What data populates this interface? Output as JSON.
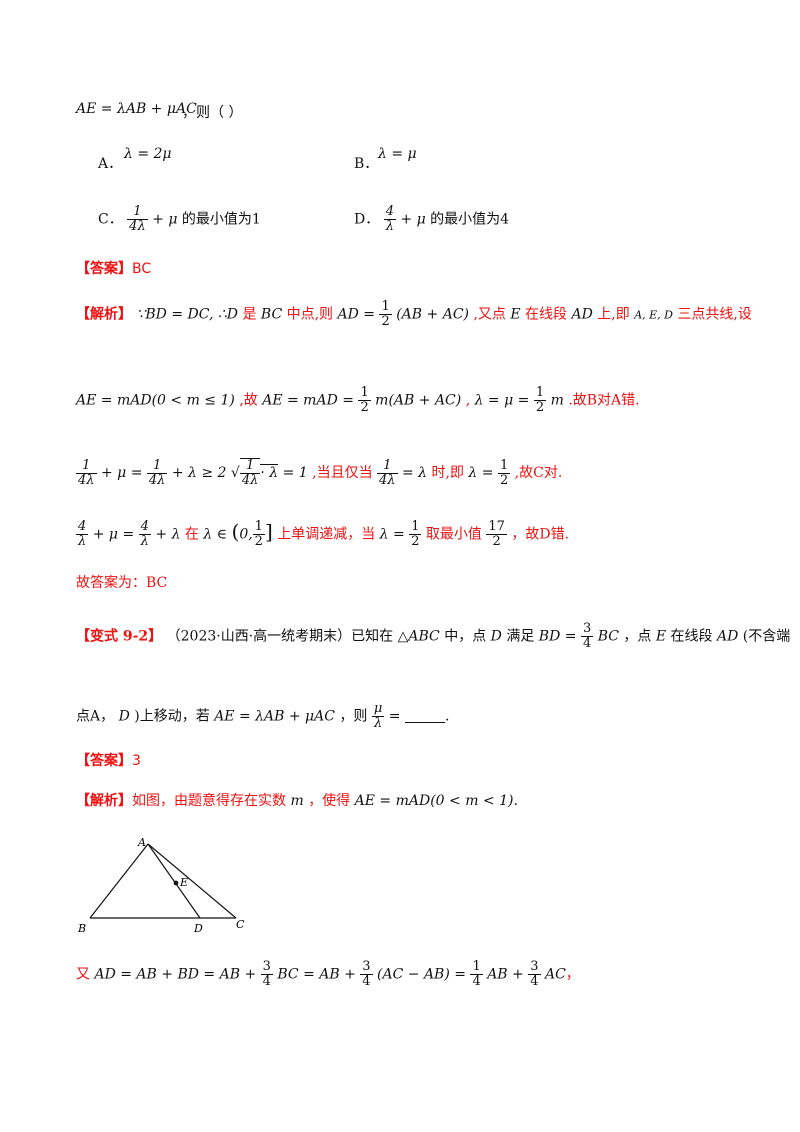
{
  "question": {
    "stem_formula": "AE = λAB + μAC",
    "stem_suffix": "，则（    ）",
    "options": [
      {
        "label": "A．",
        "text": "λ = 2μ"
      },
      {
        "label": "B．",
        "text": "λ = μ"
      },
      {
        "label": "C．",
        "frac_num": "1",
        "frac_den": "4λ",
        "tail": "+ μ",
        "text": "的最小值为1"
      },
      {
        "label": "D．",
        "frac_num": "4",
        "frac_den": "λ",
        "tail": "+ μ",
        "text": "的最小值为4"
      }
    ]
  },
  "answer1": {
    "tag": "【答案】",
    "value": "BC"
  },
  "analysis1": {
    "tag": "【解析】",
    "line1_a": "∵BD = DC, ∴D",
    "line1_b": "是",
    "line1_c": "BC",
    "line1_d": "中点,则",
    "line1_e": "AD =",
    "line1_half_num": "1",
    "line1_half_den": "2",
    "line1_f": "(AB + AC)",
    "line1_g": ",又点",
    "line1_h": "E",
    "line1_i": "在线段",
    "line1_j": "AD",
    "line1_k": "上,即",
    "line1_l": "A, E, D",
    "line1_m": "三点共线,设",
    "line2_a": "AE = mAD(0 < m ≤ 1)",
    "line2_b": ",故",
    "line2_c": "AE = mAD =",
    "line2_d": "m(AB + AC)",
    "line2_e": ",",
    "line2_f": "λ = μ =",
    "line2_g": "m",
    "line2_h": ".故B对A错.",
    "line3_a": "+ μ =",
    "line3_b": "+ λ ≥ 2",
    "line3_c": "· λ",
    "line3_d": "= 1",
    "line3_e": ",当且仅当",
    "line3_f": "= λ",
    "line3_g": "时,即",
    "line3_h": "λ =",
    "line3_i": ",故C对.",
    "line4_a": "+ μ =",
    "line4_b": "+ λ",
    "line4_c": "在",
    "line4_d": "λ ∈",
    "line4_e": "0,",
    "line4_f": "上单调递减，当",
    "line4_g": "λ =",
    "line4_h": "取最小值",
    "line4_i": "，故D错."
  },
  "final1": "故答案为：BC",
  "variant": {
    "tag": "【变式 9-2】",
    "source": "（2023·山西·高一统考期末）已知在",
    "tri": "△ABC",
    "mid1": "中，点",
    "pt_d": "D",
    "mid2": "满足",
    "bd": "BD =",
    "bd_num": "3",
    "bd_den": "4",
    "bc": "BC",
    "mid3": "，点",
    "pt_e": "E",
    "mid4": "在线段",
    "ad": "AD",
    "mid5": "(不含端",
    "line2_a": "点A，",
    "line2_b": "D",
    "line2_c": ")上移动，若",
    "line2_d": "AE = λAB + μAC",
    "line2_e": "，则",
    "frac_num": "μ",
    "frac_den": "λ",
    "eq": "=",
    "end": "."
  },
  "answer2": {
    "tag": "【答案】",
    "value": "3"
  },
  "analysis2": {
    "tag": "【解析】",
    "text": "如图，由题意得存在实数",
    "m": "m",
    "text2": "，使得",
    "formula": "AE = mAD(0 < m < 1)",
    "end": "."
  },
  "figure": {
    "A": "A",
    "B": "B",
    "C": "C",
    "D": "D",
    "E": "E"
  },
  "last_line": {
    "you": "又",
    "f1": "AD = AB + BD = AB +",
    "f2": "BC = AB +",
    "f3": "(AC − AB) =",
    "f4": "AB +",
    "f5": "AC",
    "end": "，"
  },
  "fractions": {
    "one": "1",
    "two": "2",
    "three": "3",
    "four": "4",
    "seventeen": "17",
    "four_lambda": "4λ",
    "lambda": "λ"
  }
}
